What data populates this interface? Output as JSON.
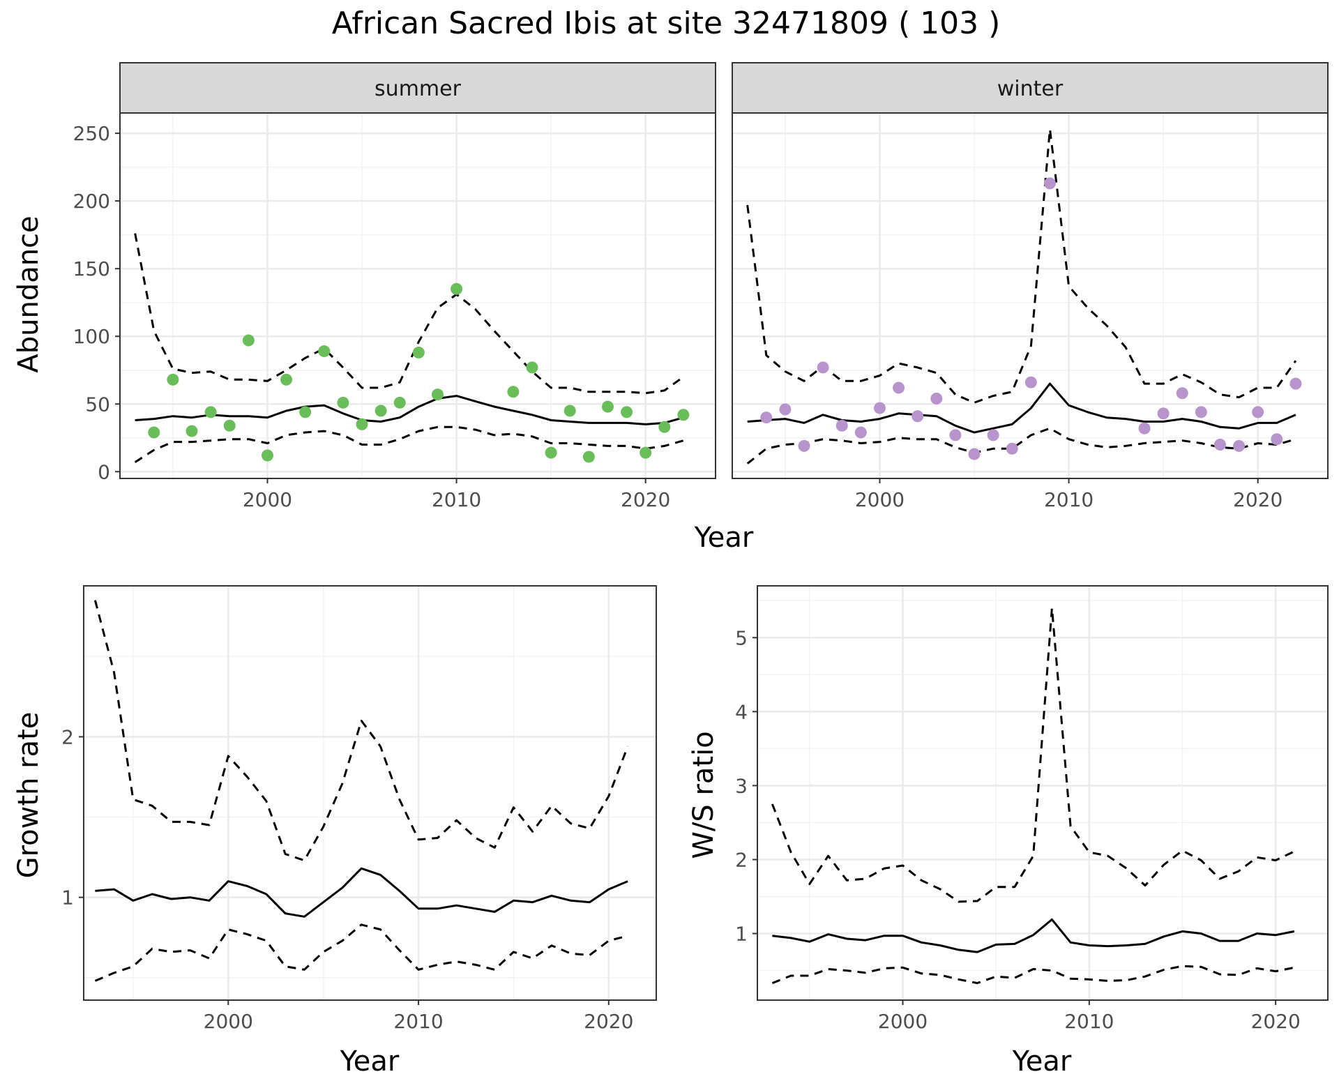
{
  "figure": {
    "title": "African Sacred Ibis at site 32471809 ( 103 )"
  },
  "chart_data": [
    {
      "type": "line",
      "panel": "summer",
      "title": "summer",
      "xlabel": "Year",
      "ylabel": "Abundance",
      "xlim": [
        1992.2,
        2023.7
      ],
      "ylim": [
        -5,
        265
      ],
      "x_ticks": [
        2000,
        2010,
        2020
      ],
      "y_ticks": [
        0,
        50,
        100,
        150,
        200,
        250
      ],
      "grid": true,
      "point_color": "#6ABE59",
      "series": [
        {
          "style": "solid",
          "x": [
            1993,
            1994,
            1995,
            1996,
            1997,
            1998,
            1999,
            2000,
            2001,
            2002,
            2003,
            2004,
            2005,
            2006,
            2007,
            2008,
            2009,
            2010,
            2011,
            2012,
            2013,
            2014,
            2015,
            2016,
            2017,
            2018,
            2019,
            2020,
            2021,
            2022
          ],
          "y": [
            38,
            39,
            41,
            40,
            42,
            41,
            41,
            40,
            45,
            48,
            49,
            43,
            38,
            37,
            40,
            48,
            54,
            56,
            52,
            48,
            45,
            42,
            38,
            37,
            36,
            36,
            36,
            35,
            36,
            40
          ]
        },
        {
          "style": "dashed",
          "x": [
            1993,
            1994,
            1995,
            1996,
            1997,
            1998,
            1999,
            2000,
            2001,
            2002,
            2003,
            2004,
            2005,
            2006,
            2007,
            2008,
            2009,
            2010,
            2011,
            2012,
            2013,
            2014,
            2015,
            2016,
            2017,
            2018,
            2019,
            2020,
            2021,
            2022
          ],
          "y": [
            176,
            104,
            76,
            73,
            74,
            68,
            68,
            67,
            75,
            84,
            91,
            77,
            62,
            62,
            66,
            96,
            121,
            131,
            120,
            104,
            89,
            74,
            62,
            62,
            59,
            59,
            59,
            58,
            60,
            70
          ]
        },
        {
          "style": "dashed",
          "x": [
            1993,
            1994,
            1995,
            1996,
            1997,
            1998,
            1999,
            2000,
            2001,
            2002,
            2003,
            2004,
            2005,
            2006,
            2007,
            2008,
            2009,
            2010,
            2011,
            2012,
            2013,
            2014,
            2015,
            2016,
            2017,
            2018,
            2019,
            2020,
            2021,
            2022
          ],
          "y": [
            7,
            16,
            22,
            22,
            23,
            24,
            24,
            21,
            27,
            29,
            30,
            27,
            20,
            20,
            24,
            30,
            33,
            33,
            31,
            27,
            28,
            26,
            21,
            21,
            20,
            19,
            19,
            17,
            19,
            23
          ]
        }
      ],
      "points": {
        "x": [
          1994,
          1995,
          1996,
          1997,
          1998,
          1999,
          2000,
          2001,
          2002,
          2003,
          2004,
          2005,
          2006,
          2007,
          2008,
          2009,
          2010,
          2013,
          2014,
          2015,
          2016,
          2017,
          2018,
          2019,
          2020,
          2021,
          2022
        ],
        "y": [
          29,
          68,
          30,
          44,
          34,
          97,
          12,
          68,
          44,
          89,
          51,
          35,
          45,
          51,
          88,
          57,
          135,
          59,
          77,
          14,
          45,
          11,
          48,
          44,
          14,
          33,
          42
        ]
      }
    },
    {
      "type": "line",
      "panel": "winter",
      "title": "winter",
      "xlabel": "Year",
      "ylabel": "Abundance",
      "xlim": [
        1992.2,
        2023.7
      ],
      "ylim": [
        -5,
        265
      ],
      "x_ticks": [
        2000,
        2010,
        2020
      ],
      "y_ticks": [
        0,
        50,
        100,
        150,
        200,
        250
      ],
      "grid": true,
      "point_color": "#B794CC",
      "series": [
        {
          "style": "solid",
          "x": [
            1993,
            1994,
            1995,
            1996,
            1997,
            1998,
            1999,
            2000,
            2001,
            2002,
            2003,
            2004,
            2005,
            2006,
            2007,
            2008,
            2009,
            2010,
            2011,
            2012,
            2013,
            2014,
            2015,
            2016,
            2017,
            2018,
            2019,
            2020,
            2021,
            2022
          ],
          "y": [
            37,
            38,
            39,
            36,
            42,
            38,
            37,
            39,
            43,
            42,
            41,
            34,
            29,
            32,
            35,
            47,
            65,
            49,
            44,
            40,
            39,
            37,
            37,
            39,
            37,
            33,
            32,
            36,
            36,
            42
          ]
        },
        {
          "style": "dashed",
          "x": [
            1993,
            1994,
            1995,
            1996,
            1997,
            1998,
            1999,
            2000,
            2001,
            2002,
            2003,
            2004,
            2005,
            2006,
            2007,
            2008,
            2009,
            2010,
            2011,
            2012,
            2013,
            2014,
            2015,
            2016,
            2017,
            2018,
            2019,
            2020,
            2021,
            2022
          ],
          "y": [
            197,
            86,
            74,
            67,
            78,
            67,
            67,
            71,
            80,
            77,
            73,
            57,
            51,
            56,
            59,
            93,
            253,
            137,
            121,
            108,
            92,
            65,
            65,
            72,
            66,
            57,
            55,
            62,
            62,
            82
          ]
        },
        {
          "style": "dashed",
          "x": [
            1993,
            1994,
            1995,
            1996,
            1997,
            1998,
            1999,
            2000,
            2001,
            2002,
            2003,
            2004,
            2005,
            2006,
            2007,
            2008,
            2009,
            2010,
            2011,
            2012,
            2013,
            2014,
            2015,
            2016,
            2017,
            2018,
            2019,
            2020,
            2021,
            2022
          ],
          "y": [
            6,
            17,
            20,
            21,
            24,
            23,
            21,
            22,
            25,
            24,
            24,
            18,
            14,
            17,
            17,
            27,
            32,
            24,
            20,
            18,
            19,
            21,
            22,
            23,
            21,
            18,
            17,
            21,
            20,
            24
          ]
        }
      ],
      "points": {
        "x": [
          1994,
          1995,
          1996,
          1997,
          1998,
          1999,
          2000,
          2001,
          2002,
          2003,
          2004,
          2005,
          2006,
          2007,
          2008,
          2009,
          2014,
          2015,
          2016,
          2017,
          2018,
          2019,
          2020,
          2021,
          2022
        ],
        "y": [
          40,
          46,
          19,
          77,
          34,
          29,
          47,
          62,
          41,
          54,
          27,
          13,
          27,
          17,
          66,
          213,
          32,
          43,
          58,
          44,
          20,
          19,
          44,
          24,
          65
        ]
      }
    },
    {
      "type": "line",
      "panel": "growth",
      "title": "",
      "xlabel": "Year",
      "ylabel": "Growth rate",
      "xlim": [
        1992.4,
        2022.5
      ],
      "ylim": [
        0.36,
        2.94
      ],
      "x_ticks": [
        2000,
        2010,
        2020
      ],
      "y_ticks": [
        1,
        2
      ],
      "grid": true,
      "series": [
        {
          "style": "solid",
          "x": [
            1993,
            1994,
            1995,
            1996,
            1997,
            1998,
            1999,
            2000,
            2001,
            2002,
            2003,
            2004,
            2005,
            2006,
            2007,
            2008,
            2009,
            2010,
            2011,
            2012,
            2013,
            2014,
            2015,
            2016,
            2017,
            2018,
            2019,
            2020,
            2021
          ],
          "y": [
            1.04,
            1.05,
            0.98,
            1.02,
            0.99,
            1.0,
            0.98,
            1.1,
            1.07,
            1.02,
            0.9,
            0.88,
            0.97,
            1.06,
            1.18,
            1.14,
            1.04,
            0.93,
            0.93,
            0.95,
            0.93,
            0.91,
            0.98,
            0.97,
            1.01,
            0.98,
            0.97,
            1.05,
            1.1
          ]
        },
        {
          "style": "dashed",
          "x": [
            1993,
            1994,
            1995,
            1996,
            1997,
            1998,
            1999,
            2000,
            2001,
            2002,
            2003,
            2004,
            2005,
            2006,
            2007,
            2008,
            2009,
            2010,
            2011,
            2012,
            2013,
            2014,
            2015,
            2016,
            2017,
            2018,
            2019,
            2020,
            2021
          ],
          "y": [
            2.85,
            2.4,
            1.61,
            1.57,
            1.47,
            1.47,
            1.45,
            1.88,
            1.75,
            1.6,
            1.27,
            1.23,
            1.44,
            1.71,
            2.1,
            1.94,
            1.61,
            1.36,
            1.37,
            1.48,
            1.37,
            1.31,
            1.56,
            1.41,
            1.57,
            1.46,
            1.43,
            1.63,
            1.94
          ]
        },
        {
          "style": "dashed",
          "x": [
            1993,
            1994,
            1995,
            1996,
            1997,
            1998,
            1999,
            2000,
            2001,
            2002,
            2003,
            2004,
            2005,
            2006,
            2007,
            2008,
            2009,
            2010,
            2011,
            2012,
            2013,
            2014,
            2015,
            2016,
            2017,
            2018,
            2019,
            2020,
            2021
          ],
          "y": [
            0.48,
            0.53,
            0.57,
            0.68,
            0.66,
            0.67,
            0.62,
            0.8,
            0.77,
            0.73,
            0.57,
            0.55,
            0.66,
            0.73,
            0.83,
            0.8,
            0.67,
            0.55,
            0.58,
            0.6,
            0.58,
            0.55,
            0.66,
            0.62,
            0.7,
            0.65,
            0.64,
            0.73,
            0.76
          ]
        }
      ]
    },
    {
      "type": "line",
      "panel": "ratio",
      "title": "",
      "xlabel": "Year",
      "ylabel": "W/S ratio",
      "xlim": [
        1992.2,
        2022.8
      ],
      "ylim": [
        0.1,
        5.7
      ],
      "x_ticks": [
        2000,
        2010,
        2020
      ],
      "y_ticks": [
        1,
        2,
        3,
        4,
        5
      ],
      "grid": true,
      "series": [
        {
          "style": "solid",
          "x": [
            1993,
            1994,
            1995,
            1996,
            1997,
            1998,
            1999,
            2000,
            2001,
            2002,
            2003,
            2004,
            2005,
            2006,
            2007,
            2008,
            2009,
            2010,
            2011,
            2012,
            2013,
            2014,
            2015,
            2016,
            2017,
            2018,
            2019,
            2020,
            2021
          ],
          "y": [
            0.97,
            0.94,
            0.89,
            0.99,
            0.93,
            0.91,
            0.97,
            0.97,
            0.88,
            0.84,
            0.78,
            0.75,
            0.85,
            0.86,
            0.98,
            1.19,
            0.88,
            0.84,
            0.83,
            0.84,
            0.86,
            0.96,
            1.03,
            1.0,
            0.9,
            0.9,
            1.0,
            0.98,
            1.03
          ]
        },
        {
          "style": "dashed",
          "x": [
            1993,
            1994,
            1995,
            1996,
            1997,
            1998,
            1999,
            2000,
            2001,
            2002,
            2003,
            2004,
            2005,
            2006,
            2007,
            2008,
            2009,
            2010,
            2011,
            2012,
            2013,
            2014,
            2015,
            2016,
            2017,
            2018,
            2019,
            2020,
            2021
          ],
          "y": [
            2.75,
            2.1,
            1.67,
            2.05,
            1.72,
            1.74,
            1.88,
            1.92,
            1.72,
            1.6,
            1.43,
            1.44,
            1.63,
            1.63,
            2.05,
            5.4,
            2.45,
            2.1,
            2.05,
            1.88,
            1.65,
            1.93,
            2.12,
            1.99,
            1.74,
            1.84,
            2.03,
            1.99,
            2.11
          ]
        },
        {
          "style": "dashed",
          "x": [
            1993,
            1994,
            1995,
            1996,
            1997,
            1998,
            1999,
            2000,
            2001,
            2002,
            2003,
            2004,
            2005,
            2006,
            2007,
            2008,
            2009,
            2010,
            2011,
            2012,
            2013,
            2014,
            2015,
            2016,
            2017,
            2018,
            2019,
            2020,
            2021
          ],
          "y": [
            0.33,
            0.43,
            0.43,
            0.52,
            0.5,
            0.47,
            0.53,
            0.54,
            0.46,
            0.44,
            0.38,
            0.33,
            0.42,
            0.4,
            0.52,
            0.5,
            0.39,
            0.38,
            0.36,
            0.37,
            0.42,
            0.51,
            0.56,
            0.55,
            0.45,
            0.44,
            0.53,
            0.49,
            0.54
          ]
        }
      ]
    }
  ]
}
